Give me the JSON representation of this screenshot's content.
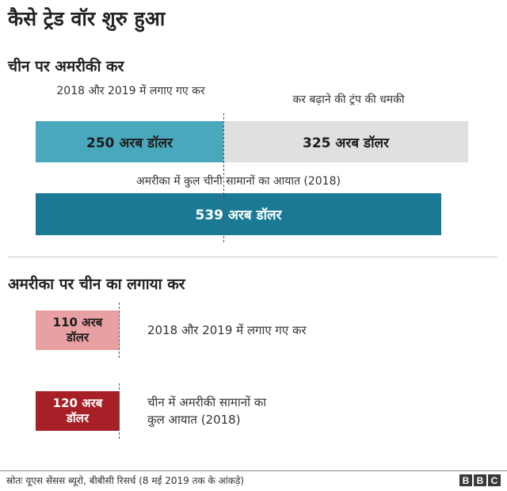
{
  "title": "कैसे ट्रेड वॉर शुरु हुआ",
  "colors": {
    "us_imposed_2018_2019": "#4aa8bd",
    "us_threatened": "#e0e0e0",
    "us_imports_total": "#1a7a96",
    "china_imposed": "#e8a0a3",
    "china_imports_total": "#a82027"
  },
  "chart_data": [
    {
      "type": "bar",
      "orientation": "horizontal",
      "title": "चीन पर अमरीकी कर",
      "series": [
        {
          "label": "2018 और 2019 में लगाए गए कर",
          "value": 250,
          "value_label": "250 अरब डॉलर"
        },
        {
          "label": "कर बढ़ाने की ट्रंप की धमकी",
          "value": 325,
          "value_label": "325 अरब डॉलर"
        },
        {
          "label": "अमरीका में कुल चीनी सामानों का आयात (2018)",
          "value": 539,
          "value_label": "539 अरब डॉलर"
        }
      ],
      "unit": "अरब डॉलर"
    },
    {
      "type": "bar",
      "orientation": "horizontal",
      "title": "अमरीका पर चीन का लगाया कर",
      "series": [
        {
          "label": "2018 और 2019 में लगाए गए कर",
          "value": 110,
          "value_label_line1": "110 अरब",
          "value_label_line2": "डॉलर"
        },
        {
          "label_line1": "चीन में अमरीकी सामानों का",
          "label_line2": "कुल आयात (2018)",
          "value": 120,
          "value_label_line1": "120 अरब",
          "value_label_line2": "डॉलर"
        }
      ],
      "unit": "अरब डॉलर"
    }
  ],
  "footer": {
    "source": "स्रोतः यूएस सेंसस ब्यूरो, बीबीसी रिसर्च (8 मई 2019 तक के आंकड़े)",
    "logo_letters": [
      "B",
      "B",
      "C"
    ]
  }
}
